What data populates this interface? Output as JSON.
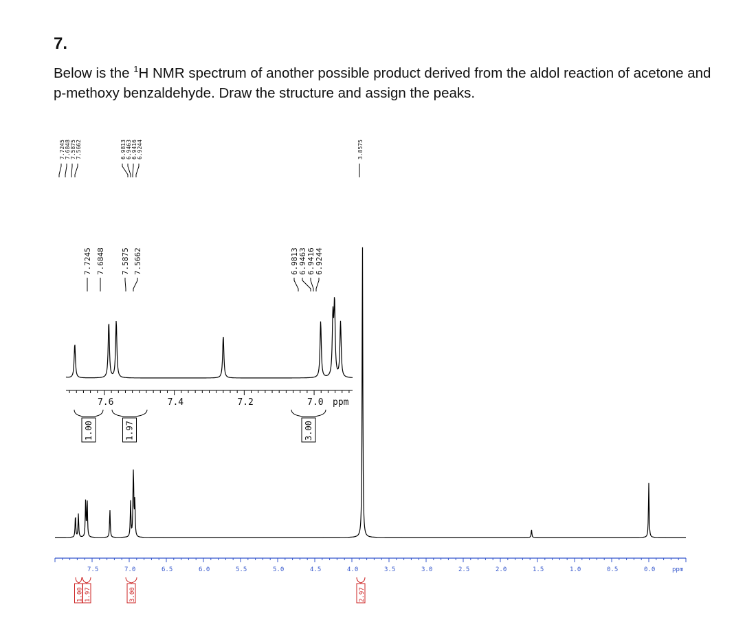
{
  "question": {
    "number": "7.",
    "text_before": "Below is the ",
    "superscript": "1",
    "text_after": "H NMR spectrum of another possible product derived from the aldol reaction of acetone and p-methoxy benzaldehyde. Draw the structure and assign the peaks."
  },
  "chart_data": [
    {
      "type": "line",
      "name": "expanded_region",
      "xlabel": "ppm",
      "xlim": [
        7.71,
        6.89
      ],
      "xticks": [
        "7.6",
        "7.4",
        "7.2",
        "7.0"
      ],
      "peak_labels": [
        "7.7245",
        "7.6848",
        "7.5875",
        "7.5662",
        "6.9813",
        "6.9463",
        "6.9416",
        "6.9244"
      ],
      "peaks": [
        {
          "ppm": 7.7245,
          "height": 0.38
        },
        {
          "ppm": 7.6848,
          "height": 0.38
        },
        {
          "ppm": 7.5875,
          "height": 0.62
        },
        {
          "ppm": 7.5662,
          "height": 0.64
        },
        {
          "ppm": 7.26,
          "height": 0.47
        },
        {
          "ppm": 6.9813,
          "height": 0.63
        },
        {
          "ppm": 6.9463,
          "height": 0.65
        },
        {
          "ppm": 6.9416,
          "height": 0.8
        },
        {
          "ppm": 6.9244,
          "height": 0.62
        }
      ],
      "integrals": [
        {
          "ppm": 7.705,
          "value": "1.00"
        },
        {
          "ppm": 7.576,
          "value": "1.97"
        },
        {
          "ppm": 6.953,
          "value": "3.00"
        }
      ]
    },
    {
      "type": "line",
      "name": "full_spectrum",
      "xlabel": "ppm",
      "xlim": [
        8.0,
        -0.5
      ],
      "xticks": [
        "7.5",
        "7.0",
        "6.5",
        "6.0",
        "5.5",
        "5.0",
        "4.5",
        "4.0",
        "3.5",
        "3.0",
        "2.5",
        "2.0",
        "1.5",
        "1.0",
        "0.5",
        "0.0"
      ],
      "top_peak_labels": [
        "7.7245",
        "7.6848",
        "7.5875",
        "7.5662",
        "6.9813",
        "6.9463",
        "6.9416",
        "6.9244",
        "3.8575"
      ],
      "peaks": [
        {
          "ppm": 7.7245,
          "height": 0.36
        },
        {
          "ppm": 7.6848,
          "height": 0.38
        },
        {
          "ppm": 7.5875,
          "height": 0.58
        },
        {
          "ppm": 7.5662,
          "height": 0.6
        },
        {
          "ppm": 7.26,
          "height": 0.45
        },
        {
          "ppm": 6.9813,
          "height": 0.57
        },
        {
          "ppm": 6.9463,
          "height": 0.65
        },
        {
          "ppm": 6.9416,
          "height": 0.58
        },
        {
          "ppm": 6.9244,
          "height": 0.58
        },
        {
          "ppm": 3.8575,
          "height": 4.85
        },
        {
          "ppm": 1.58,
          "height": 0.13
        },
        {
          "ppm": 0.0,
          "height": 0.88
        }
      ],
      "integrals": [
        {
          "ppm": 7.72,
          "value": "1.00"
        },
        {
          "ppm": 7.57,
          "value": "1.97"
        },
        {
          "ppm": 6.95,
          "value": "3.00"
        },
        {
          "ppm": 3.86,
          "value": "2.97"
        }
      ]
    }
  ],
  "colors": {
    "text": "#111111",
    "spectrum": "#000000",
    "axis_full": "#3355cc",
    "integral_full": "#cc2222",
    "axis_expanded": "#000000"
  }
}
